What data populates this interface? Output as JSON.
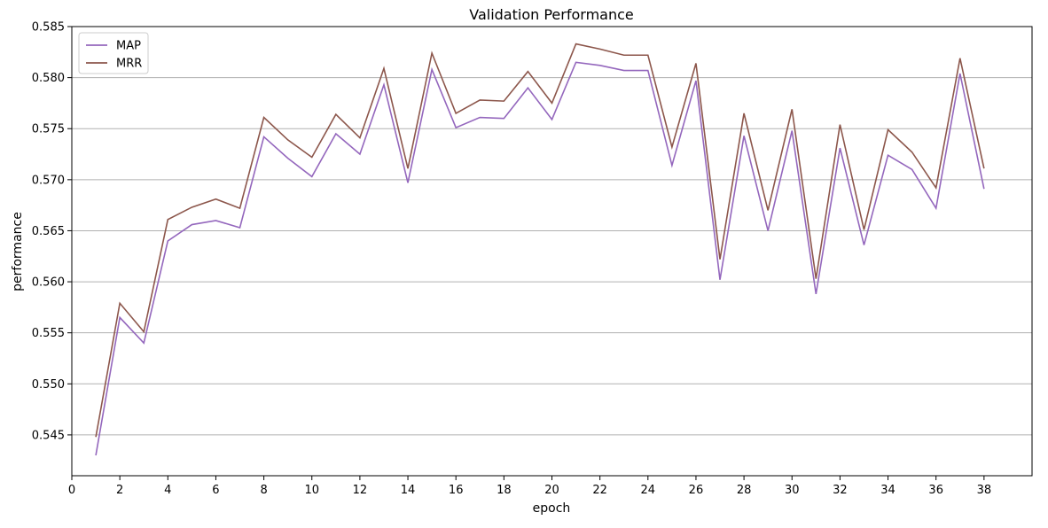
{
  "chart_data": {
    "type": "line",
    "title": "Validation Performance",
    "xlabel": "epoch",
    "ylabel": "performance",
    "xlim": [
      0,
      40
    ],
    "ylim": [
      0.541,
      0.585
    ],
    "xticks": [
      0,
      2,
      4,
      6,
      8,
      10,
      12,
      14,
      16,
      18,
      20,
      22,
      24,
      26,
      28,
      30,
      32,
      34,
      36,
      38
    ],
    "yticks": [
      0.545,
      0.55,
      0.555,
      0.56,
      0.565,
      0.57,
      0.575,
      0.58,
      0.585
    ],
    "grid": "horizontal",
    "legend_position": "top-left",
    "x": [
      1,
      2,
      3,
      4,
      5,
      6,
      7,
      8,
      9,
      10,
      11,
      12,
      13,
      14,
      15,
      16,
      17,
      18,
      19,
      20,
      21,
      22,
      23,
      24,
      25,
      26,
      27,
      28,
      29,
      30,
      31,
      32,
      33,
      34,
      35,
      36,
      37,
      38
    ],
    "series": [
      {
        "name": "MAP",
        "color": "#9467bd",
        "values": [
          0.543,
          0.5565,
          0.554,
          0.564,
          0.5656,
          0.566,
          0.5653,
          0.5742,
          0.5721,
          0.5703,
          0.5745,
          0.5725,
          0.5793,
          0.5697,
          0.5808,
          0.5751,
          0.5761,
          0.576,
          0.579,
          0.5759,
          0.5815,
          0.5812,
          0.5807,
          0.5807,
          0.5714,
          0.5797,
          0.5602,
          0.5743,
          0.565,
          0.5748,
          0.5588,
          0.5731,
          0.5636,
          0.5724,
          0.571,
          0.5672,
          0.5804,
          0.5691
        ]
      },
      {
        "name": "MRR",
        "color": "#8c564b",
        "values": [
          0.5448,
          0.5579,
          0.5551,
          0.5661,
          0.5673,
          0.5681,
          0.5672,
          0.5761,
          0.5739,
          0.5722,
          0.5764,
          0.5741,
          0.5809,
          0.5711,
          0.5824,
          0.5765,
          0.5778,
          0.5777,
          0.5806,
          0.5775,
          0.5833,
          0.5828,
          0.5822,
          0.5822,
          0.5732,
          0.5814,
          0.5622,
          0.5765,
          0.567,
          0.5769,
          0.5603,
          0.5754,
          0.5651,
          0.5749,
          0.5727,
          0.5692,
          0.5819,
          0.5711
        ]
      }
    ]
  }
}
